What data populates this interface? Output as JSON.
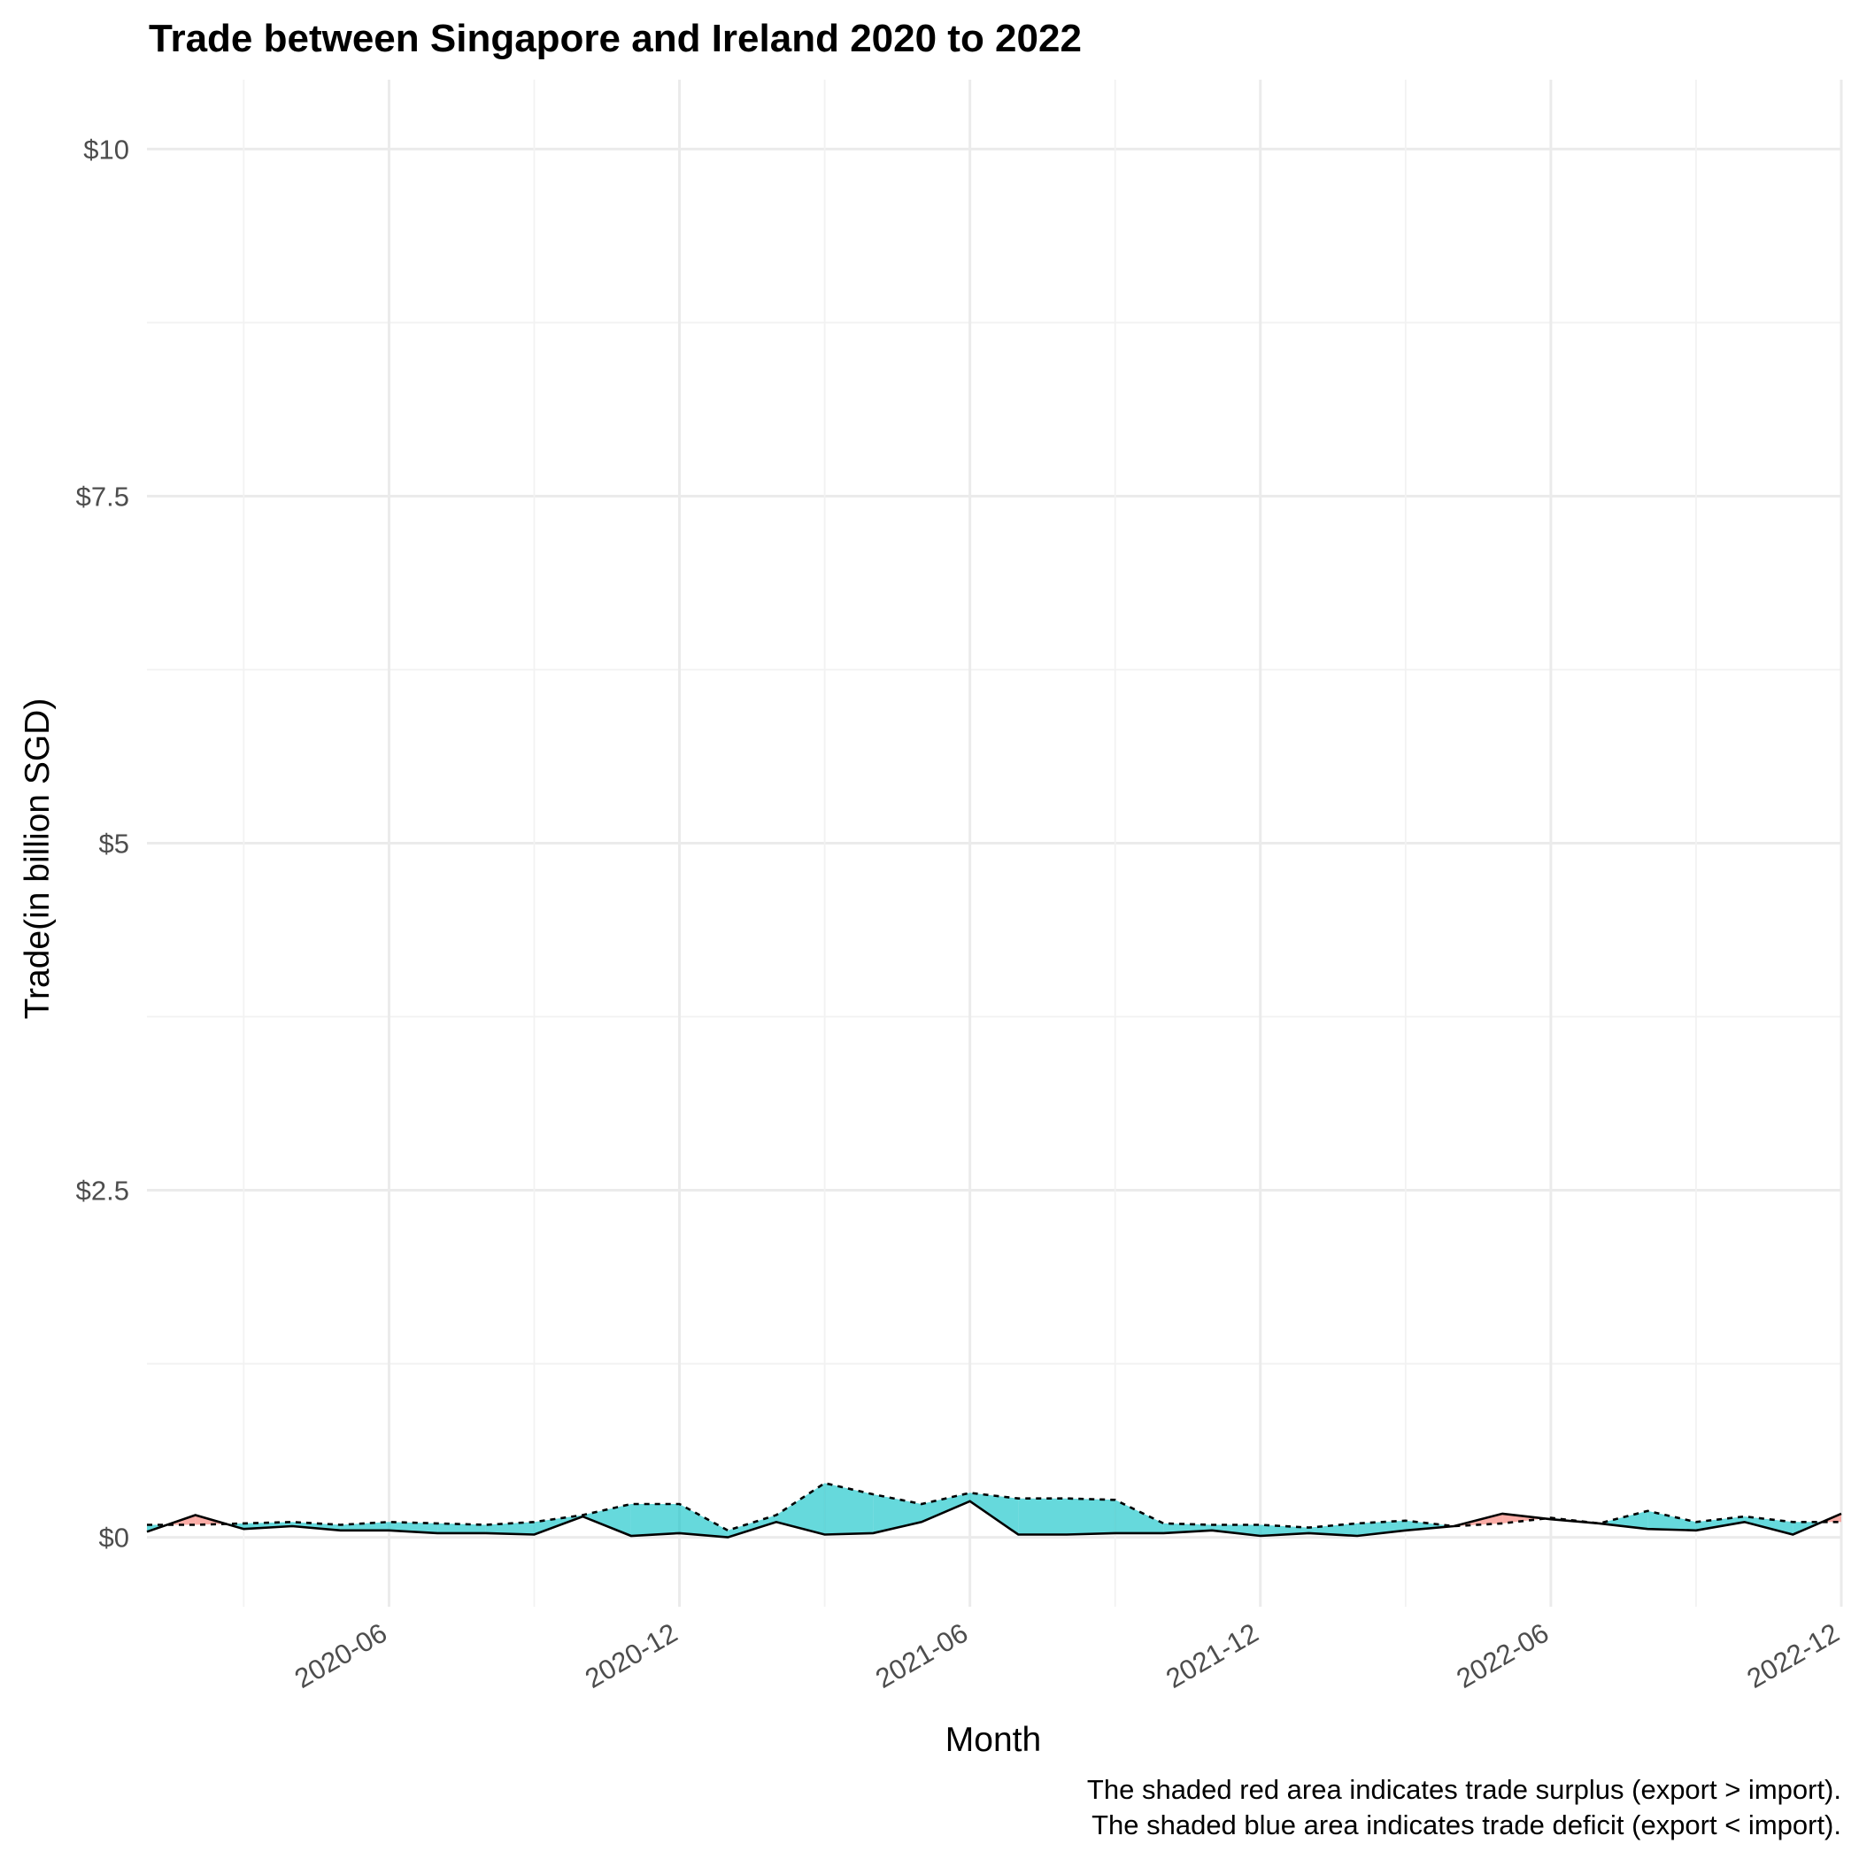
{
  "chart_data": {
    "type": "area",
    "title": "Trade between Singapore and Ireland  2020 to 2022",
    "xlabel": "Month",
    "ylabel": "Trade(in billion SGD)",
    "x_tick_labels": [
      "2020-06",
      "2020-12",
      "2021-06",
      "2021-12",
      "2022-06",
      "2022-12"
    ],
    "y_tick_labels": [
      "$0",
      "$2.5",
      "$5",
      "$7.5",
      "$10"
    ],
    "y_ticks": [
      0,
      2.5,
      5,
      7.5,
      10
    ],
    "ylim": [
      -0.5,
      10.5
    ],
    "xlim": [
      "2020-01",
      "2022-12"
    ],
    "grid": true,
    "x": [
      "2020-01",
      "2020-02",
      "2020-03",
      "2020-04",
      "2020-05",
      "2020-06",
      "2020-07",
      "2020-08",
      "2020-09",
      "2020-10",
      "2020-11",
      "2020-12",
      "2021-01",
      "2021-02",
      "2021-03",
      "2021-04",
      "2021-05",
      "2021-06",
      "2021-07",
      "2021-08",
      "2021-09",
      "2021-10",
      "2021-11",
      "2021-12",
      "2022-01",
      "2022-02",
      "2022-03",
      "2022-04",
      "2022-05",
      "2022-06",
      "2022-07",
      "2022-08",
      "2022-09",
      "2022-10",
      "2022-11",
      "2022-12"
    ],
    "series": [
      {
        "key": "export",
        "line_style": "solid",
        "values": [
          0.04,
          0.16,
          0.06,
          0.08,
          0.05,
          0.05,
          0.03,
          0.03,
          0.02,
          0.15,
          0.01,
          0.03,
          0.0,
          0.11,
          0.02,
          0.03,
          0.11,
          0.26,
          0.02,
          0.02,
          0.03,
          0.03,
          0.05,
          0.01,
          0.03,
          0.01,
          0.05,
          0.08,
          0.17,
          0.13,
          0.1,
          0.06,
          0.05,
          0.11,
          0.02,
          0.17
        ]
      },
      {
        "key": "import",
        "line_style": "dotted",
        "values": [
          0.09,
          0.09,
          0.1,
          0.11,
          0.09,
          0.11,
          0.1,
          0.09,
          0.11,
          0.16,
          0.24,
          0.24,
          0.05,
          0.16,
          0.39,
          0.31,
          0.24,
          0.32,
          0.28,
          0.28,
          0.27,
          0.1,
          0.09,
          0.09,
          0.07,
          0.1,
          0.12,
          0.08,
          0.1,
          0.14,
          0.1,
          0.19,
          0.11,
          0.15,
          0.11,
          0.11
        ]
      }
    ],
    "fill_colors": {
      "surplus": "#f8766d",
      "deficit": "#00bfc4"
    },
    "caption": [
      "The shaded red area indicates trade surplus (export > import).",
      "The shaded blue area indicates trade deficit (export < import)."
    ]
  }
}
